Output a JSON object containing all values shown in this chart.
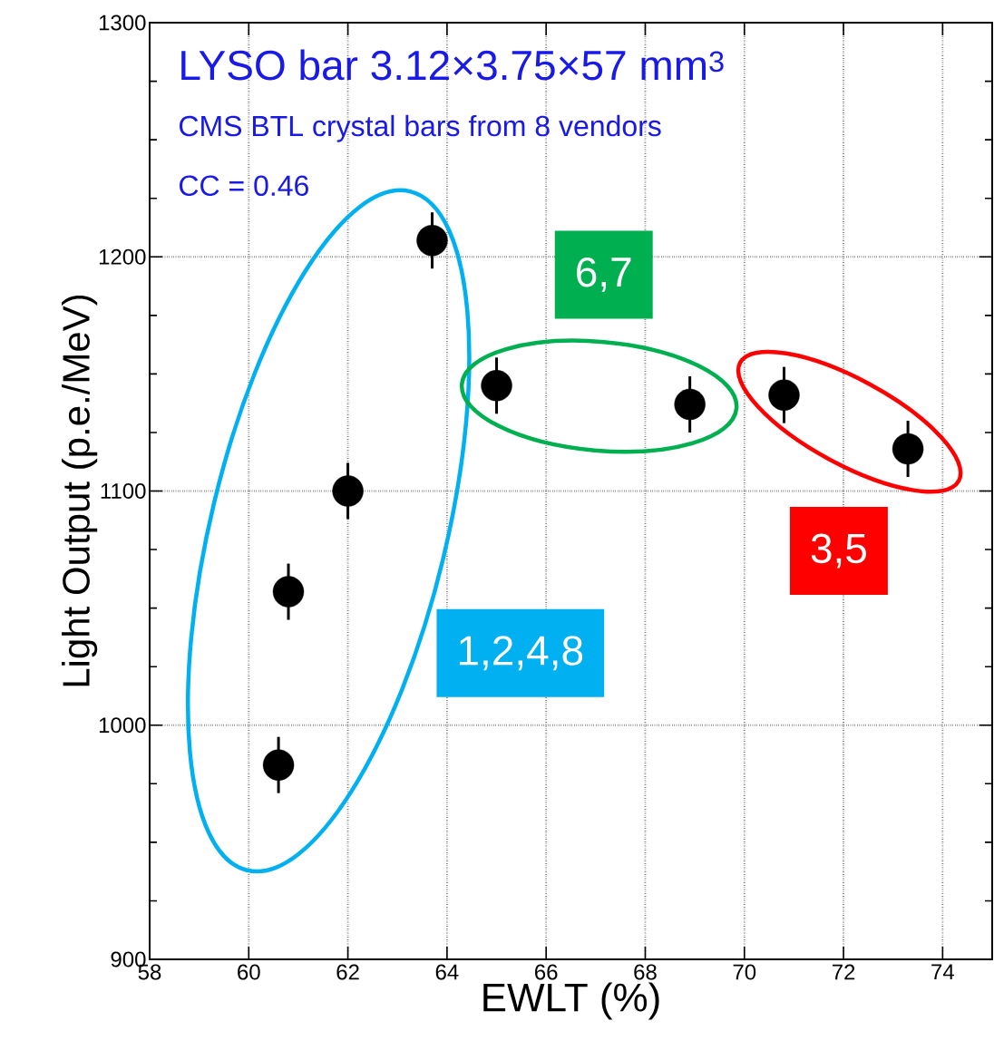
{
  "chart_data": {
    "type": "scatter",
    "title": "LYSO  bar  3.12×3.75×57   mm$^{3}$",
    "subtitle": "CMS BTL crystal bars from 8 vendors",
    "xlabel": "EWLT (%)",
    "ylabel": "Light Output (p.e./MeV)",
    "annotations": [
      "CC = 0.46",
      "6,7",
      "3,5",
      "1,2,4,8"
    ],
    "x": [
      60.6,
      60.8,
      62.0,
      63.7,
      65.0,
      68.9,
      70.8,
      73.3
    ],
    "values": [
      983,
      1057,
      1100,
      1207,
      1145,
      1137,
      1141,
      1118
    ],
    "errors": [
      12,
      12,
      12,
      12,
      12,
      12,
      12,
      12
    ],
    "xerrors": [
      0.3,
      0.3,
      0.3,
      0.3,
      0.3,
      0.3,
      0.3,
      0.3
    ],
    "color": "#000000",
    "marker": "circle",
    "grid": true,
    "xlim": [
      58,
      75
    ],
    "ylim": [
      900,
      1300
    ],
    "xticks": [
      58,
      60,
      62,
      64,
      66,
      68,
      70,
      72,
      74
    ],
    "yticks": [
      900,
      1000,
      1100,
      1200,
      1300
    ]
  }
}
